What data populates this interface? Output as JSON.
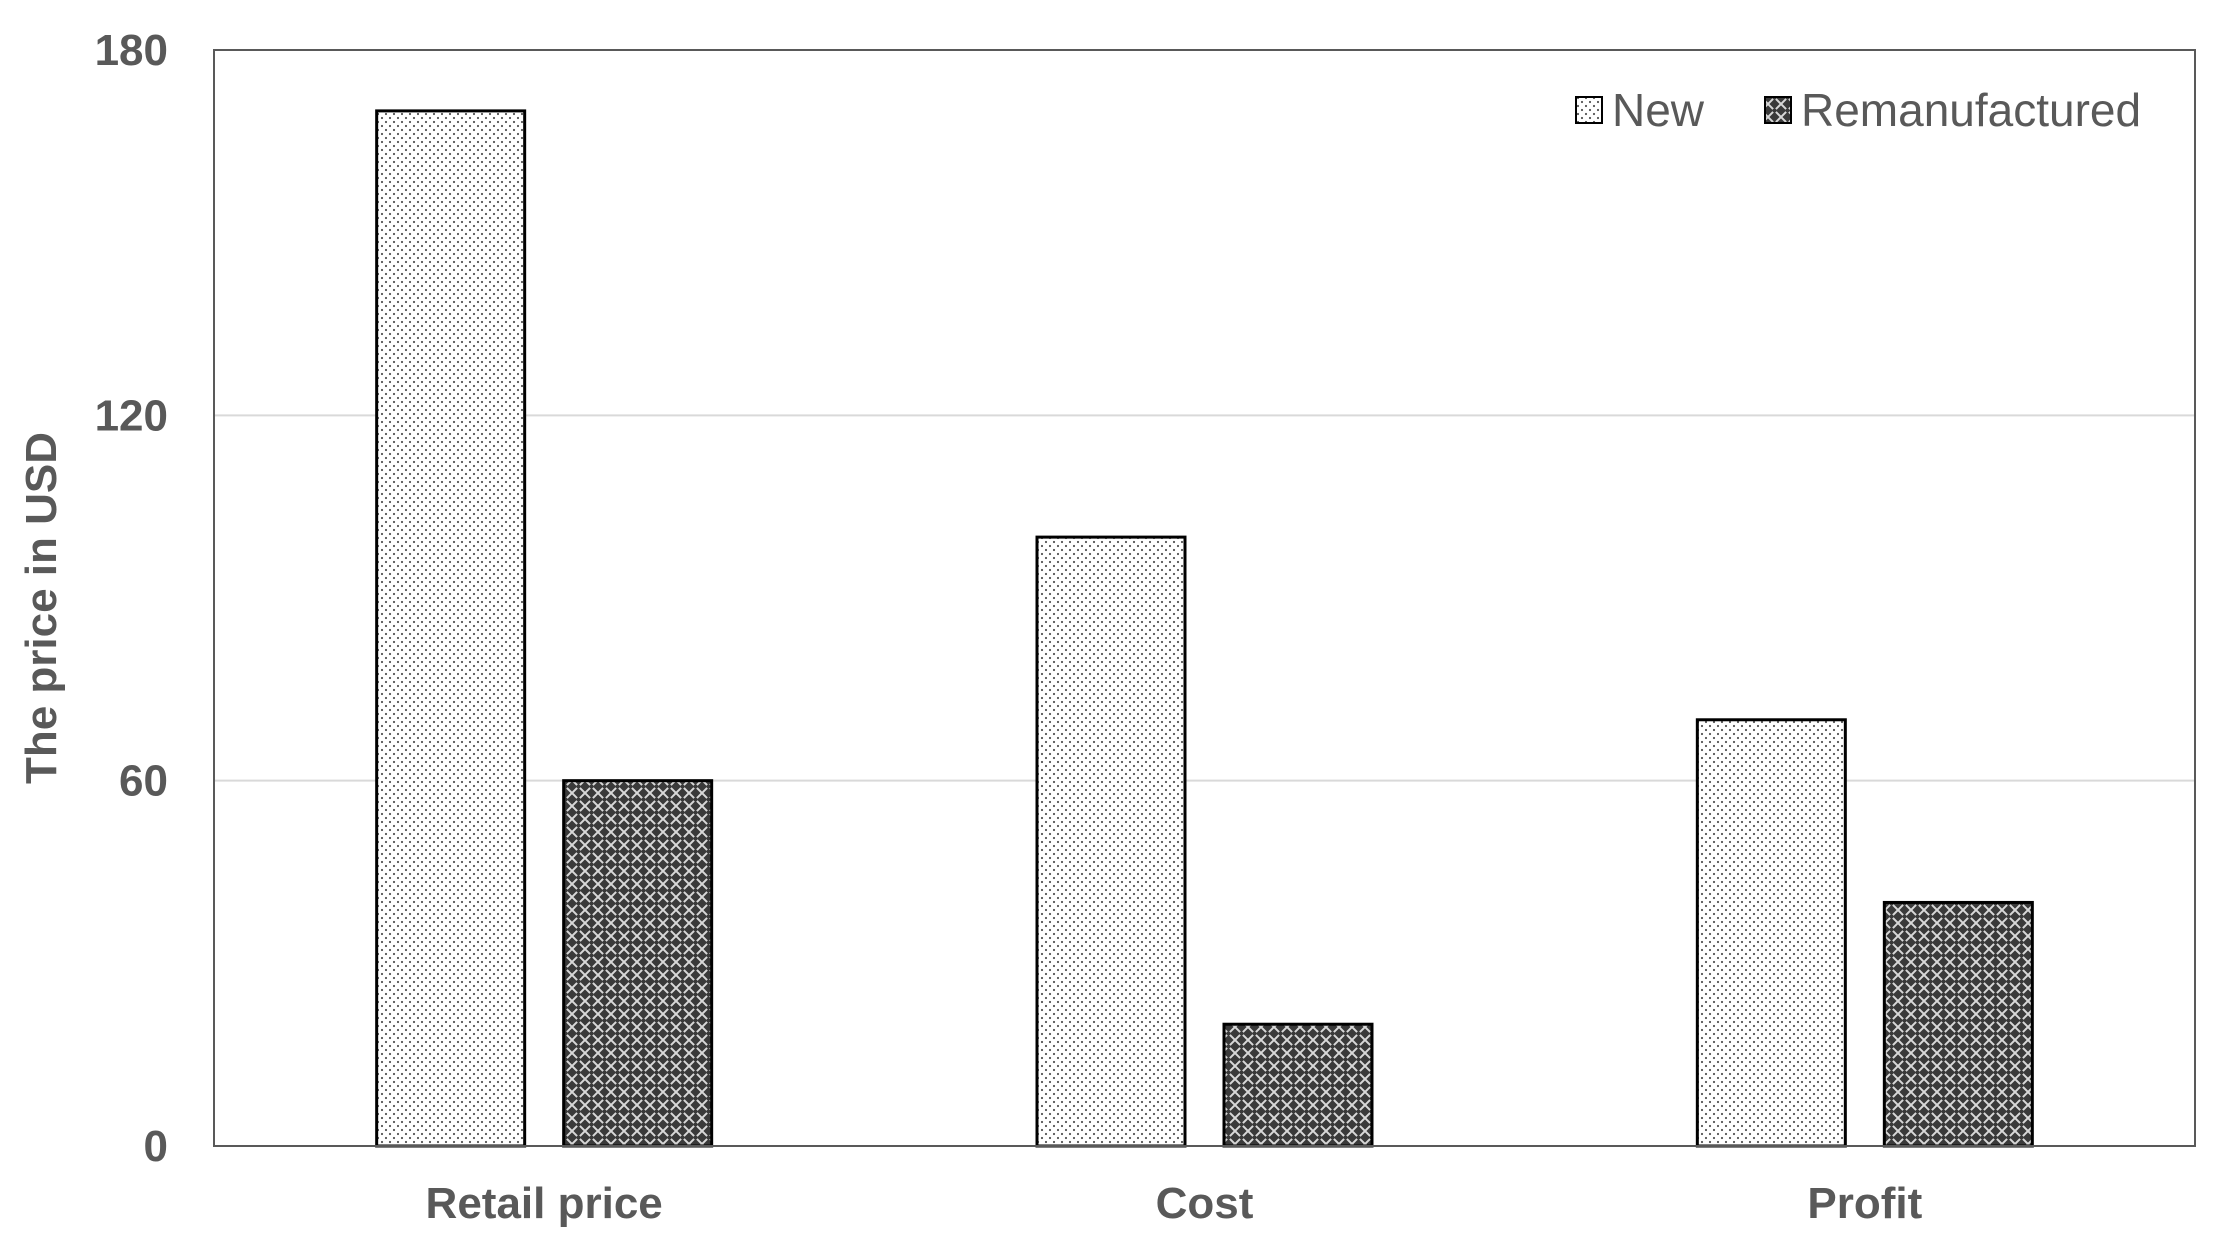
{
  "chart_data": {
    "type": "bar",
    "title": "",
    "xlabel": "",
    "ylabel": "The price in USD",
    "ylim": [
      0,
      180
    ],
    "yticks": [
      0,
      60,
      120,
      180
    ],
    "categories": [
      "Retail price",
      "Cost",
      "Profit"
    ],
    "series": [
      {
        "name": "New",
        "values": [
          170,
          100,
          70
        ],
        "pattern": "dots"
      },
      {
        "name": "Remanufactured",
        "values": [
          60,
          20,
          40
        ],
        "pattern": "crosshatch"
      }
    ],
    "grid": true,
    "legend_position": "top-right",
    "colors": {
      "axis": "#595959",
      "grid": "#d9d9d9",
      "bar_stroke": "#000000"
    }
  }
}
